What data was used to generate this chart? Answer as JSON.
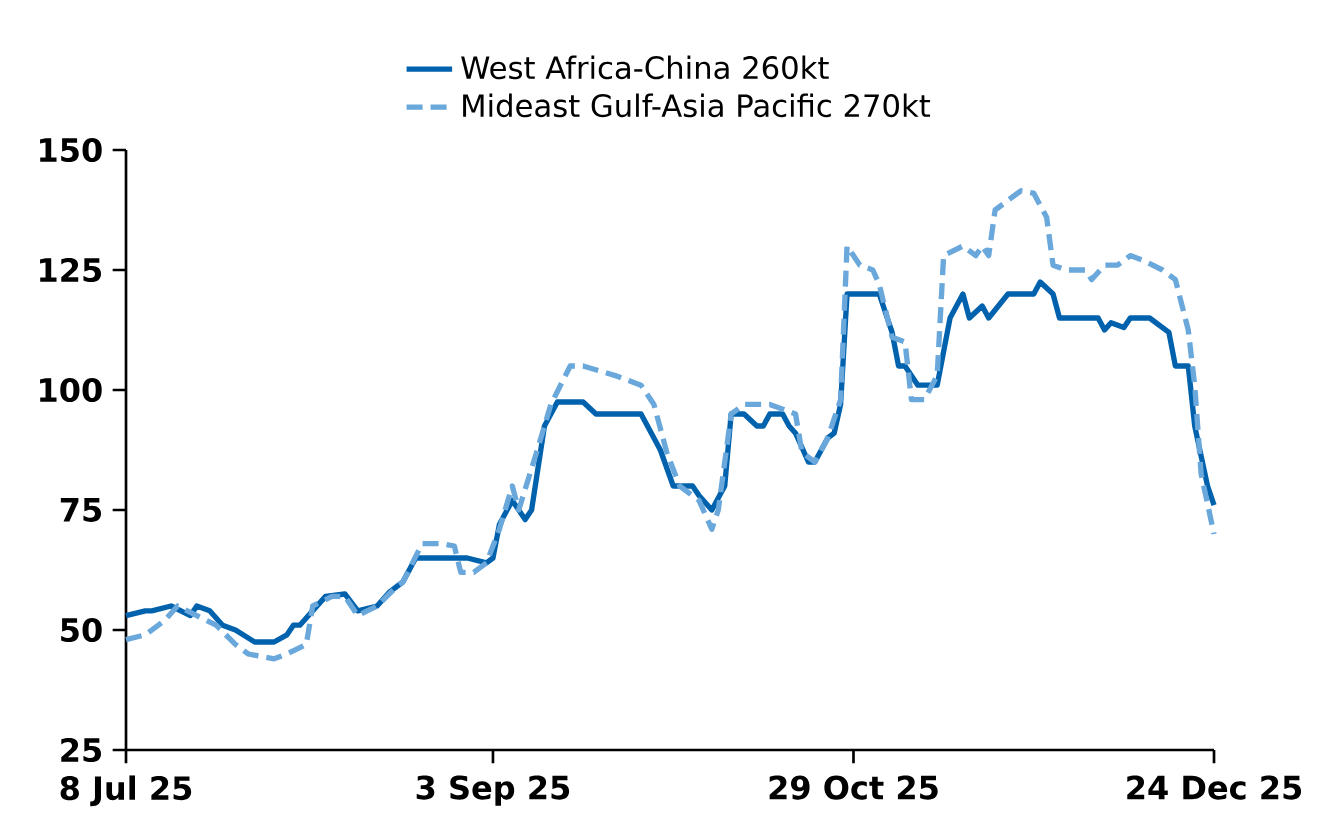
{
  "chart_data": {
    "type": "line",
    "legend": "top",
    "xlim": [
      "2025-07-08",
      "2025-12-24"
    ],
    "xticks": [
      {
        "value": "2025-07-08",
        "label": "8 Jul 25"
      },
      {
        "value": "2025-09-03",
        "label": "3 Sep 25"
      },
      {
        "value": "2025-10-29",
        "label": "29 Oct 25"
      },
      {
        "value": "2025-12-24",
        "label": "24 Dec 25"
      }
    ],
    "ylim": [
      25,
      150
    ],
    "yticks": [
      25,
      50,
      75,
      100,
      125,
      150
    ],
    "series": [
      {
        "name": "West Africa-China 260kt",
        "color": "#0061ad",
        "line_style": "solid",
        "x": [
          "2025-07-08",
          "2025-07-11",
          "2025-07-12",
          "2025-07-15",
          "2025-07-18",
          "2025-07-19",
          "2025-07-21",
          "2025-07-23",
          "2025-07-25",
          "2025-07-28",
          "2025-07-31",
          "2025-08-02",
          "2025-08-03",
          "2025-08-04",
          "2025-08-08",
          "2025-08-11",
          "2025-08-13",
          "2025-08-16",
          "2025-08-18",
          "2025-08-20",
          "2025-08-22",
          "2025-08-30",
          "2025-09-02",
          "2025-09-03",
          "2025-09-04",
          "2025-09-06",
          "2025-09-08",
          "2025-09-09",
          "2025-09-11",
          "2025-09-13",
          "2025-09-17",
          "2025-09-19",
          "2025-09-26",
          "2025-09-28",
          "2025-09-29",
          "2025-10-01",
          "2025-10-04",
          "2025-10-05",
          "2025-10-07",
          "2025-10-09",
          "2025-10-10",
          "2025-10-12",
          "2025-10-14",
          "2025-10-15",
          "2025-10-16",
          "2025-10-18",
          "2025-10-19",
          "2025-10-20",
          "2025-10-22",
          "2025-10-23",
          "2025-10-25",
          "2025-10-26",
          "2025-10-27",
          "2025-10-28",
          "2025-11-02",
          "2025-11-04",
          "2025-11-05",
          "2025-11-06",
          "2025-11-08",
          "2025-11-11",
          "2025-11-13",
          "2025-11-15",
          "2025-11-16",
          "2025-11-18",
          "2025-11-19",
          "2025-11-22",
          "2025-11-26",
          "2025-11-27",
          "2025-11-29",
          "2025-11-30",
          "2025-12-06",
          "2025-12-07",
          "2025-12-08",
          "2025-12-10",
          "2025-12-11",
          "2025-12-14",
          "2025-12-16",
          "2025-12-17",
          "2025-12-18",
          "2025-12-20",
          "2025-12-21",
          "2025-12-23",
          "2025-12-24"
        ],
        "values": [
          53,
          54,
          54,
          55,
          53,
          55,
          54,
          51,
          50,
          47.5,
          47.5,
          49,
          51,
          51,
          57,
          57.5,
          54,
          55,
          58,
          60,
          65,
          65,
          64,
          65,
          72,
          77,
          73,
          75,
          92.5,
          97.5,
          97.5,
          95,
          95,
          90,
          87.5,
          80,
          80,
          78,
          75,
          80,
          95,
          95,
          92.5,
          92.5,
          95,
          95,
          92.5,
          91,
          85,
          85,
          90,
          91,
          97,
          120,
          120,
          112,
          105,
          105,
          101,
          101,
          115,
          120,
          115,
          117.5,
          115,
          120,
          120,
          122.5,
          120,
          115,
          115,
          112.5,
          114,
          113,
          115,
          115,
          113,
          112,
          105,
          105,
          92.5,
          80,
          76
        ]
      },
      {
        "name": "Mideast Gulf-Asia Pacific 270kt",
        "color": "#6aa8dc",
        "line_style": "dashed",
        "x": [
          "2025-07-08",
          "2025-07-11",
          "2025-07-14",
          "2025-07-16",
          "2025-07-19",
          "2025-07-22",
          "2025-07-25",
          "2025-07-27",
          "2025-07-31",
          "2025-08-02",
          "2025-08-05",
          "2025-08-06",
          "2025-08-09",
          "2025-08-11",
          "2025-08-13",
          "2025-08-16",
          "2025-08-19",
          "2025-08-20",
          "2025-08-23",
          "2025-08-26",
          "2025-08-28",
          "2025-08-29",
          "2025-08-31",
          "2025-09-02",
          "2025-09-04",
          "2025-09-06",
          "2025-09-07",
          "2025-09-10",
          "2025-09-12",
          "2025-09-15",
          "2025-09-17",
          "2025-09-22",
          "2025-09-26",
          "2025-09-28",
          "2025-09-30",
          "2025-10-02",
          "2025-10-05",
          "2025-10-07",
          "2025-10-08",
          "2025-10-10",
          "2025-10-12",
          "2025-10-16",
          "2025-10-20",
          "2025-10-21",
          "2025-10-23",
          "2025-10-25",
          "2025-10-27",
          "2025-10-28",
          "2025-10-30",
          "2025-11-01",
          "2025-11-02",
          "2025-11-04",
          "2025-11-06",
          "2025-11-07",
          "2025-11-09",
          "2025-11-11",
          "2025-11-12",
          "2025-11-15",
          "2025-11-17",
          "2025-11-18",
          "2025-11-19",
          "2025-11-20",
          "2025-11-24",
          "2025-11-26",
          "2025-11-28",
          "2025-11-29",
          "2025-12-01",
          "2025-12-04",
          "2025-12-05",
          "2025-12-07",
          "2025-12-09",
          "2025-12-11",
          "2025-12-13",
          "2025-12-16",
          "2025-12-18",
          "2025-12-20",
          "2025-12-21",
          "2025-12-22",
          "2025-12-24"
        ],
        "values": [
          48,
          49,
          52,
          55,
          53,
          51,
          47,
          45,
          44,
          45,
          47,
          55,
          57,
          57,
          53,
          55,
          59,
          60,
          68,
          68,
          67.5,
          62,
          62,
          64,
          71,
          80,
          75,
          88,
          97,
          105,
          105,
          103,
          101,
          97,
          87,
          80,
          77,
          71,
          75,
          95,
          97,
          97,
          95,
          87,
          85,
          90,
          98,
          130,
          126,
          125,
          122,
          111,
          110,
          98,
          98,
          103,
          128,
          130,
          128,
          130,
          128,
          137.5,
          141.5,
          141,
          136,
          126,
          125,
          125,
          123,
          126,
          126,
          128,
          127,
          125,
          123,
          112.5,
          101,
          82.5,
          70
        ]
      }
    ]
  }
}
